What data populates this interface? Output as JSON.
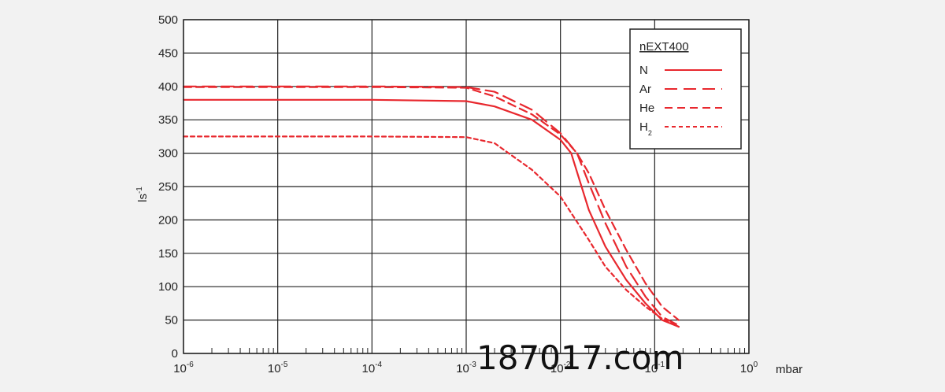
{
  "chart_data": {
    "type": "line",
    "title": "",
    "xlabel": "",
    "x_unit": "mbar",
    "ylabel": "ls",
    "ylabel_exp": "-1",
    "x_scale": "log",
    "xlim": [
      1e-06,
      1
    ],
    "ylim": [
      0,
      500
    ],
    "y_ticks": [
      0,
      50,
      100,
      150,
      200,
      250,
      300,
      350,
      400,
      450,
      500
    ],
    "x_tick_labels": [
      {
        "base": "10",
        "exp": "-6"
      },
      {
        "base": "10",
        "exp": "-5"
      },
      {
        "base": "10",
        "exp": "-4"
      },
      {
        "base": "10",
        "exp": "-3"
      },
      {
        "base": "10",
        "exp": "-2"
      },
      {
        "base": "10",
        "exp": "-1"
      },
      {
        "base": "10",
        "exp": "0"
      }
    ],
    "grid": true,
    "legend_position": "top-right",
    "legend_title": "nEXT400",
    "color": "#e8282e",
    "series": [
      {
        "name": "N",
        "dash": "solid",
        "x": [
          1e-06,
          1e-05,
          0.0001,
          0.001,
          0.002,
          0.005,
          0.01,
          0.013,
          0.02,
          0.03,
          0.05,
          0.08,
          0.12,
          0.18
        ],
        "y": [
          380,
          380,
          380,
          378,
          370,
          350,
          320,
          300,
          215,
          160,
          110,
          75,
          50,
          40
        ]
      },
      {
        "name": "Ar",
        "dash": "long",
        "x": [
          1e-06,
          1e-05,
          0.0001,
          0.001,
          0.002,
          0.005,
          0.01,
          0.015,
          0.02,
          0.03,
          0.05,
          0.08,
          0.12,
          0.18
        ],
        "y": [
          400,
          400,
          400,
          399,
          392,
          365,
          330,
          300,
          255,
          195,
          130,
          85,
          55,
          42
        ]
      },
      {
        "name": "He",
        "dash": "medium",
        "x": [
          1e-06,
          1e-05,
          0.0001,
          0.001,
          0.002,
          0.005,
          0.01,
          0.015,
          0.02,
          0.03,
          0.05,
          0.08,
          0.12,
          0.18
        ],
        "y": [
          399,
          399,
          399,
          398,
          385,
          358,
          328,
          300,
          270,
          215,
          155,
          105,
          70,
          50
        ]
      },
      {
        "name": "H",
        "name_sub": "2",
        "dash": "short",
        "x": [
          1e-06,
          1e-05,
          0.0001,
          0.001,
          0.002,
          0.005,
          0.01,
          0.02,
          0.03,
          0.05,
          0.08,
          0.12,
          0.18
        ],
        "y": [
          325,
          325,
          325,
          324,
          315,
          275,
          235,
          170,
          130,
          95,
          70,
          52,
          40
        ]
      }
    ]
  },
  "watermark": "187017.com"
}
